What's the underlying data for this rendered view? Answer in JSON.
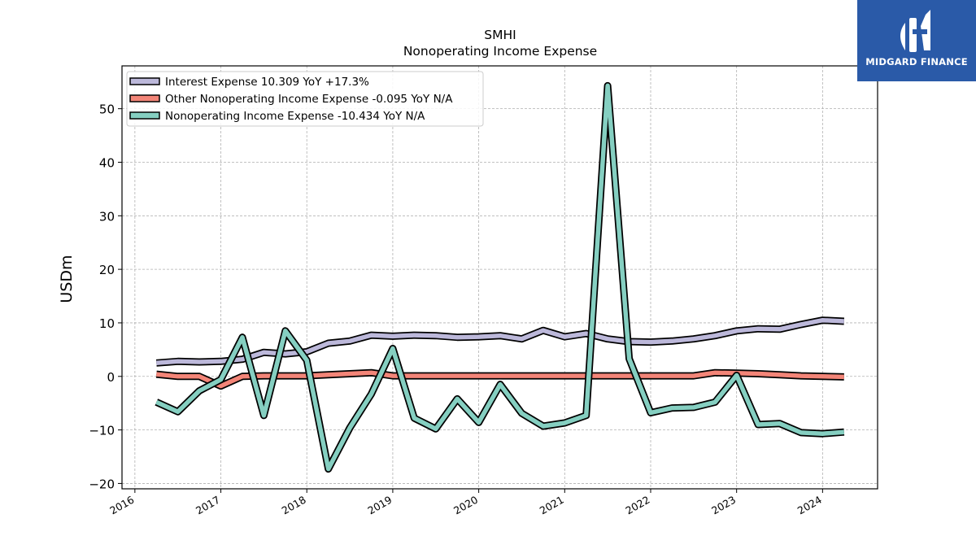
{
  "brand": {
    "name": "MIDGARD FINANCE",
    "color": "#2a5aa8"
  },
  "chart_data": {
    "type": "line",
    "title": "SMHI",
    "subtitle": "Nonoperating Income Expense",
    "ylabel": "USDm",
    "xlabel": "",
    "xlim": [
      2015.85,
      2024.64
    ],
    "ylim": [
      -21,
      58
    ],
    "yticks": [
      -20,
      -10,
      0,
      10,
      20,
      30,
      40,
      50
    ],
    "xticks": [
      2016,
      2017,
      2018,
      2019,
      2020,
      2021,
      2022,
      2023,
      2024
    ],
    "xtick_labels": [
      "2016",
      "2017",
      "2018",
      "2019",
      "2020",
      "2021",
      "2022",
      "2023",
      "2024"
    ],
    "grid": true,
    "legend_position": "top-left",
    "series": [
      {
        "name": "Interest Expense",
        "legend_label": "Interest Expense  10.309 YoY +17.3%",
        "color": "#bcb8da",
        "x": [
          2016.25,
          2016.5,
          2016.75,
          2017.0,
          2017.25,
          2017.5,
          2017.75,
          2018.0,
          2018.25,
          2018.5,
          2018.75,
          2019.0,
          2019.25,
          2019.5,
          2019.75,
          2020.0,
          2020.25,
          2020.5,
          2020.75,
          2021.0,
          2021.25,
          2021.5,
          2021.75,
          2022.0,
          2022.25,
          2022.5,
          2022.75,
          2023.0,
          2023.25,
          2023.5,
          2023.75,
          2024.0,
          2024.25
        ],
        "values": [
          2.5,
          2.8,
          2.7,
          2.8,
          3.2,
          4.5,
          4.2,
          4.6,
          6.2,
          6.6,
          7.7,
          7.5,
          7.7,
          7.6,
          7.3,
          7.4,
          7.6,
          7.0,
          8.6,
          7.4,
          8.0,
          7.0,
          6.5,
          6.4,
          6.6,
          7.0,
          7.6,
          8.5,
          8.9,
          8.8,
          9.7,
          10.5,
          10.3
        ]
      },
      {
        "name": "Other Nonoperating Income Expense",
        "legend_label": "Other Nonoperating Income Expense  -0.095 YoY N/A",
        "color": "#f38578",
        "x": [
          2016.25,
          2016.5,
          2016.75,
          2017.0,
          2017.25,
          2017.5,
          2017.75,
          2018.0,
          2018.25,
          2018.5,
          2018.75,
          2019.0,
          2019.25,
          2019.5,
          2019.75,
          2020.0,
          2020.25,
          2020.5,
          2020.75,
          2021.0,
          2021.25,
          2021.5,
          2021.75,
          2022.0,
          2022.25,
          2022.5,
          2022.75,
          2023.0,
          2023.25,
          2023.5,
          2023.75,
          2024.0,
          2024.25
        ],
        "values": [
          0.4,
          0.0,
          0.0,
          -1.8,
          0.0,
          0.1,
          0.1,
          0.1,
          0.3,
          0.5,
          0.7,
          0.1,
          0.1,
          0.1,
          0.1,
          0.1,
          0.1,
          0.1,
          0.1,
          0.1,
          0.1,
          0.1,
          0.1,
          0.1,
          0.1,
          0.1,
          0.7,
          0.6,
          0.5,
          0.3,
          0.1,
          0.0,
          -0.1
        ]
      },
      {
        "name": "Nonoperating Income Expense",
        "legend_label": "Nonoperating Income Expense  -10.434 YoY N/A",
        "color": "#85cfc1",
        "x": [
          2016.25,
          2016.5,
          2016.75,
          2017.0,
          2017.25,
          2017.5,
          2017.75,
          2018.0,
          2018.25,
          2018.5,
          2018.75,
          2019.0,
          2019.25,
          2019.5,
          2019.75,
          2020.0,
          2020.25,
          2020.5,
          2020.75,
          2021.0,
          2021.25,
          2021.5,
          2021.75,
          2022.0,
          2022.25,
          2022.5,
          2022.75,
          2023.0,
          2023.25,
          2023.5,
          2023.75,
          2024.0,
          2024.25
        ],
        "values": [
          -4.8,
          -6.6,
          -2.7,
          -0.6,
          7.3,
          -7.3,
          8.5,
          3.0,
          -17.3,
          -9.6,
          -3.3,
          5.2,
          -7.8,
          -9.8,
          -4.2,
          -8.6,
          -1.5,
          -6.9,
          -9.3,
          -8.7,
          -7.3,
          54.3,
          3.3,
          -6.8,
          -5.9,
          -5.8,
          -4.8,
          0.2,
          -9.0,
          -8.8,
          -10.5,
          -10.7,
          -10.4
        ]
      }
    ]
  }
}
